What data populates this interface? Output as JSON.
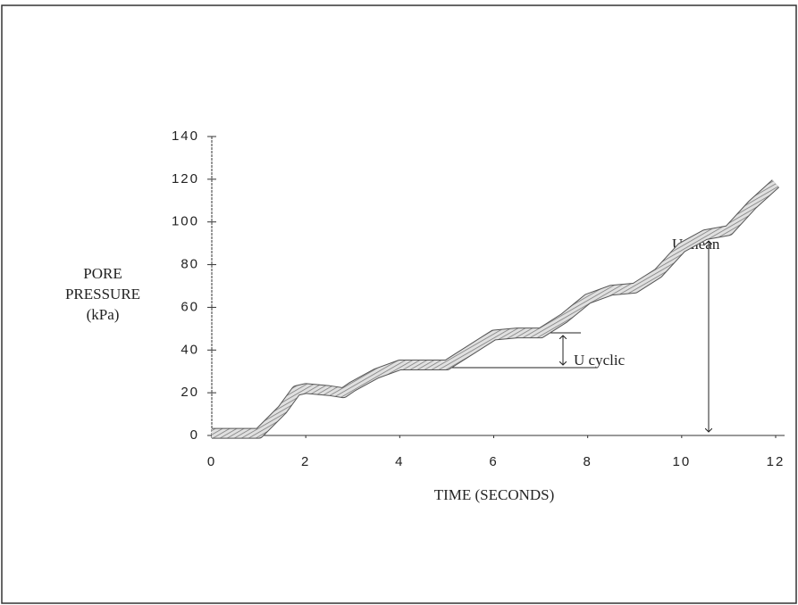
{
  "chart_data": {
    "type": "line",
    "ylabel": [
      "PORE",
      "PRESSURE",
      "(kPa)"
    ],
    "xlabel": "TIME (SECONDS)",
    "x": [
      0,
      0.5,
      1,
      1.5,
      1.8,
      2,
      2.5,
      2.8,
      3,
      3.5,
      4,
      4.5,
      5,
      5.5,
      6,
      6.5,
      7,
      7.5,
      8,
      8.5,
      9,
      9.5,
      10,
      10.5,
      11,
      11.5,
      12
    ],
    "series": [
      {
        "name": "Pore pressure",
        "color": "#9a9a9a",
        "values": [
          1,
          1,
          1,
          12,
          21,
          22,
          21,
          20,
          23,
          29,
          33,
          33,
          33,
          40,
          47,
          48,
          48,
          55,
          64,
          68,
          69,
          76,
          88,
          94,
          96,
          108,
          118
        ]
      }
    ],
    "xlim": [
      0,
      12
    ],
    "xticks": [
      0,
      2,
      4,
      6,
      8,
      10,
      12
    ],
    "ylim": [
      0,
      140
    ],
    "yticks": [
      0,
      20,
      40,
      60,
      80,
      100,
      120,
      140
    ],
    "annotations": [
      "U cyclic",
      "U mean"
    ]
  }
}
